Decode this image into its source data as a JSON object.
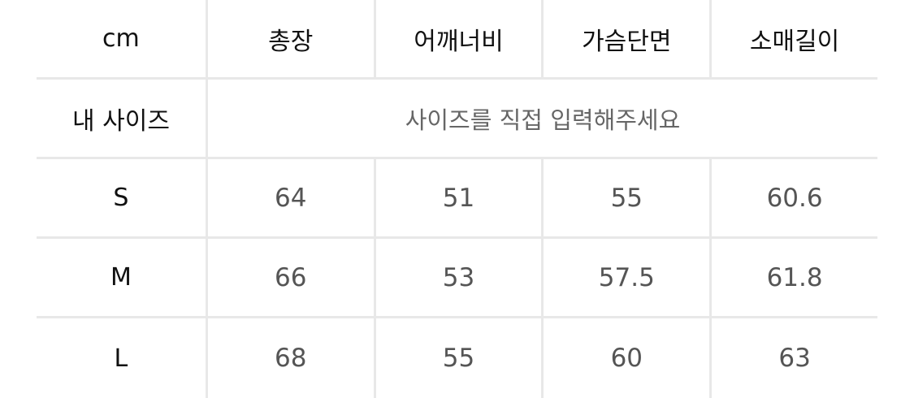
{
  "headers": [
    "cm",
    "총장",
    "어깨너비",
    "가슴단면",
    "소매길이"
  ],
  "my_size": {
    "label": "내 사이즈",
    "placeholder": "사이즈를 직접 입력해주세요"
  },
  "rows": [
    {
      "size": "S",
      "values": [
        "64",
        "51",
        "55",
        "60.6"
      ]
    },
    {
      "size": "M",
      "values": [
        "66",
        "53",
        "57.5",
        "61.8"
      ]
    },
    {
      "size": "L",
      "values": [
        "68",
        "55",
        "60",
        "63"
      ]
    }
  ],
  "colors": {
    "grid": "#e8e8e8",
    "value_text": "#555555",
    "header_text": "#111111"
  }
}
